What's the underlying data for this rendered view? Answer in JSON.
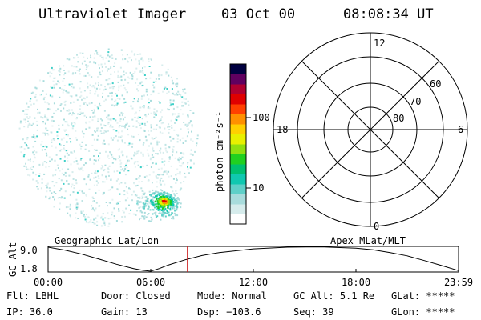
{
  "header": {
    "instrument": "Ultraviolet Imager",
    "date": "03 Oct 00",
    "time": "08:08:34 UT"
  },
  "colorbar": {
    "label": "photon cm⁻²s⁻¹",
    "ticks": [
      {
        "label": "100",
        "value": 100
      },
      {
        "label": "10",
        "value": 10
      }
    ],
    "colors": [
      "#ffffff",
      "#d6ecec",
      "#a8dcdc",
      "#5fd0c8",
      "#10c8b0",
      "#00c070",
      "#20d020",
      "#90e010",
      "#e8f000",
      "#ffd000",
      "#ff9000",
      "#ff4000",
      "#e00000",
      "#b00030",
      "#600060",
      "#000040"
    ]
  },
  "polar_grid": {
    "mlt_labels": [
      {
        "label": "12",
        "angle_deg": 90
      },
      {
        "label": "18",
        "angle_deg": 180
      },
      {
        "label": "6",
        "angle_deg": 0
      },
      {
        "label": "0",
        "angle_deg": 270
      }
    ],
    "lat_labels": [
      "60",
      "70",
      "80"
    ]
  },
  "timeline": {
    "left_title": "Geographic Lat/Lon",
    "right_title": "Apex MLat/MLT",
    "ylabel": "GC Alt",
    "y_ticks": [
      "9.0",
      "1.8"
    ],
    "x_ticks": [
      "00:00",
      "06:00",
      "12:00",
      "18:00",
      "23:59"
    ],
    "marker_hour": 8.14,
    "marker_color": "#cc2020"
  },
  "chart_data": {
    "type": "line",
    "title": "",
    "xlabel": "",
    "ylabel": "GC Alt",
    "xlim": [
      0,
      24
    ],
    "ylim": [
      1.8,
      9.0
    ],
    "series": [
      {
        "x": [
          0,
          1,
          2,
          3,
          4,
          5,
          5.5,
          6,
          6.5,
          7,
          8,
          9,
          10,
          12,
          14,
          16,
          18,
          19,
          20,
          21,
          22,
          23,
          23.98
        ],
        "y": [
          9.0,
          8.1,
          6.9,
          5.4,
          3.9,
          2.6,
          2.1,
          1.8,
          2.6,
          3.6,
          5.2,
          6.5,
          7.4,
          8.5,
          9.0,
          9.1,
          8.7,
          8.2,
          7.4,
          6.4,
          5.0,
          3.5,
          2.0
        ]
      }
    ]
  },
  "status": {
    "row1": [
      {
        "label": "Flt:",
        "value": "LBHL"
      },
      {
        "label": "Door:",
        "value": "Closed"
      },
      {
        "label": "Mode:",
        "value": "Normal"
      },
      {
        "label": "GC Alt:",
        "value": "5.1 Re"
      },
      {
        "label": "GLat:",
        "value": "*****"
      }
    ],
    "row2": [
      {
        "label": "IP:",
        "value": "36.0"
      },
      {
        "label": "Gain:",
        "value": "13"
      },
      {
        "label": "Dsp:",
        "value": "−103.6"
      },
      {
        "label": "Seq:",
        "value": "39"
      },
      {
        "label": "GLon:",
        "value": "*****"
      }
    ]
  }
}
